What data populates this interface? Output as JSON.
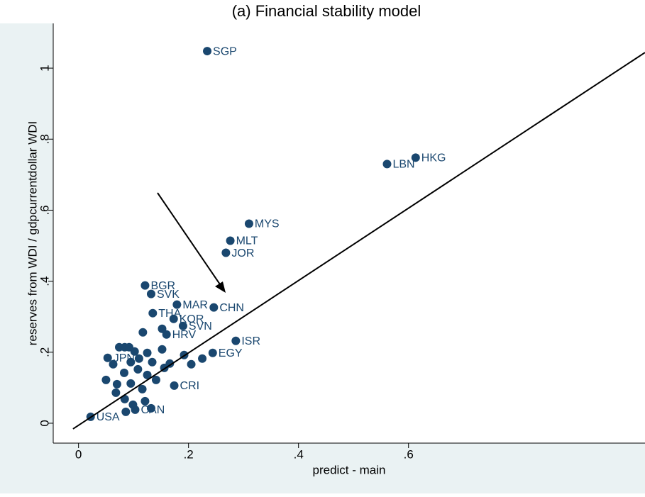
{
  "chart_data": {
    "type": "scatter",
    "title": "(a) Financial stability model",
    "x_label": "predict - main",
    "y_label": "reserves from WDI / gdpcurrentdollar WDI",
    "color": "#1a476f",
    "labels": [
      "SGP",
      "HKG",
      "LBN",
      "MYS",
      "MLT",
      "JOR",
      "BGR",
      "SVK",
      "MAR",
      "CHN",
      "THA",
      "KOR",
      "SVN",
      "HRV",
      "ISR",
      "JPN",
      "EGY",
      "USA",
      "CRI",
      "CAN",
      null,
      null,
      null,
      null,
      null,
      null,
      null,
      null,
      null,
      null,
      null,
      null,
      null,
      null,
      null,
      null,
      null,
      null,
      null,
      null,
      null,
      null,
      null,
      null,
      null,
      null,
      null,
      null,
      null,
      null,
      null
    ],
    "x": [
      0.234,
      0.613,
      0.561,
      0.31,
      0.276,
      0.268,
      0.121,
      0.132,
      0.179,
      0.246,
      0.135,
      0.173,
      0.19,
      0.16,
      0.286,
      0.053,
      0.244,
      0.022,
      0.174,
      0.103,
      0.074,
      0.084,
      0.092,
      0.152,
      0.102,
      0.125,
      0.11,
      0.063,
      0.095,
      0.134,
      0.166,
      0.205,
      0.083,
      0.108,
      0.125,
      0.141,
      0.07,
      0.095,
      0.116,
      0.068,
      0.084,
      0.099,
      0.121,
      0.132,
      0.086,
      0.152,
      0.117,
      0.192,
      0.225,
      0.156,
      0.05
    ],
    "y": [
      1.048,
      0.748,
      0.73,
      0.562,
      0.514,
      0.48,
      0.388,
      0.364,
      0.334,
      0.326,
      0.31,
      0.294,
      0.274,
      0.25,
      0.232,
      0.184,
      0.198,
      0.018,
      0.106,
      0.038,
      0.214,
      0.214,
      0.214,
      0.208,
      0.202,
      0.198,
      0.182,
      0.166,
      0.172,
      0.172,
      0.168,
      0.166,
      0.142,
      0.152,
      0.136,
      0.122,
      0.11,
      0.112,
      0.096,
      0.086,
      0.068,
      0.052,
      0.062,
      0.042,
      0.032,
      0.266,
      0.256,
      0.192,
      0.182,
      0.156,
      0.122
    ],
    "fit_line": {
      "x": [
        -0.01,
        1.03
      ],
      "y": [
        -0.016,
        1.044
      ]
    },
    "xlim": [
      -0.046,
      1.03
    ],
    "ylim": [
      -0.056,
      1.126
    ],
    "xticks": [
      0,
      {
        "value": 0.2,
        "label": ".2"
      },
      {
        "value": 0.4,
        "label": ".4"
      },
      {
        "value": 0.6,
        "label": ".6"
      }
    ],
    "yticks": [
      0,
      {
        "value": 0.2,
        "label": ".2"
      },
      {
        "value": 0.4,
        "label": ".4"
      },
      {
        "value": 0.6,
        "label": ".6"
      },
      {
        "value": 0.8,
        "label": ".8"
      },
      1
    ]
  }
}
